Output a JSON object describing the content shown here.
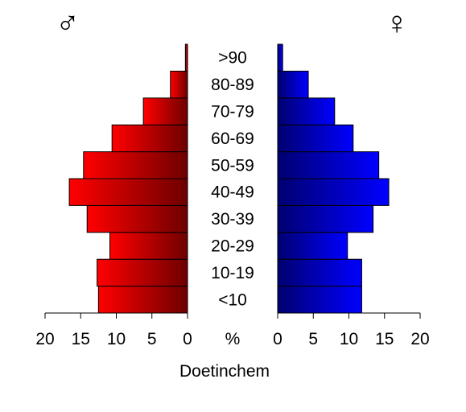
{
  "chart_data": {
    "type": "bar",
    "title": "",
    "xlabel": "Doetinchem",
    "unit_label": "%",
    "categories": [
      "<10",
      "10-19",
      "20-29",
      "30-39",
      "40-49",
      "50-59",
      "60-69",
      "70-79",
      "80-89",
      ">90"
    ],
    "series": [
      {
        "name": "♂",
        "values": [
          12.5,
          12.7,
          10.9,
          14.1,
          16.6,
          14.6,
          10.6,
          6.2,
          2.4,
          0.3
        ]
      },
      {
        "name": "♀",
        "values": [
          11.8,
          11.8,
          9.8,
          13.4,
          15.6,
          14.2,
          10.6,
          8.0,
          4.3,
          0.7
        ]
      }
    ],
    "xlim": [
      0,
      20
    ],
    "xticks": [
      "0",
      "5",
      "10",
      "15",
      "20"
    ],
    "male_symbol": "♂",
    "female_symbol": "♀",
    "colors": {
      "male_light": "#ff0000",
      "male_dark": "#6e0000",
      "female_light": "#0000ff",
      "female_dark": "#000070"
    }
  }
}
